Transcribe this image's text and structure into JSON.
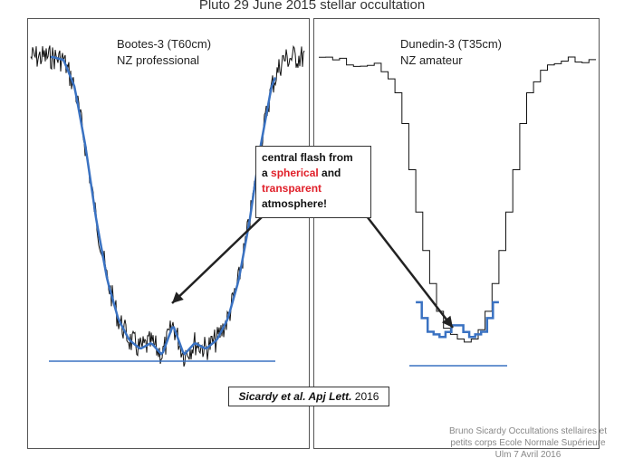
{
  "title": "Pluto 29 June 2015 stellar occultation",
  "chart_data": [
    {
      "type": "line",
      "title": "",
      "labels": [
        "Bootes-3 (T60cm)",
        "NZ professional"
      ],
      "series": [
        {
          "role": "data",
          "color": "#111111",
          "x": [
            0,
            4,
            8,
            12,
            16,
            20,
            24,
            28,
            32,
            36,
            40,
            44,
            48,
            52,
            56,
            60,
            64,
            68,
            72,
            76,
            80,
            84,
            88,
            92,
            96,
            100
          ],
          "y": [
            1.0,
            1.0,
            1.0,
            0.99,
            0.9,
            0.7,
            0.45,
            0.25,
            0.12,
            0.05,
            0.02,
            0.04,
            0.0,
            0.1,
            0.0,
            0.04,
            0.02,
            0.05,
            0.12,
            0.25,
            0.45,
            0.7,
            0.9,
            0.99,
            1.0,
            1.0
          ]
        },
        {
          "role": "fit",
          "color": "#3a72c2",
          "x": [
            0,
            4,
            8,
            12,
            16,
            20,
            24,
            28,
            32,
            36,
            40,
            44,
            48,
            52,
            56,
            60,
            64,
            68,
            72,
            76,
            80,
            84,
            88,
            92,
            96,
            100
          ],
          "y": [
            1.0,
            1.0,
            1.0,
            0.99,
            0.9,
            0.7,
            0.45,
            0.25,
            0.12,
            0.05,
            0.02,
            0.04,
            0.0,
            0.1,
            0.0,
            0.04,
            0.02,
            0.05,
            0.12,
            0.25,
            0.45,
            0.7,
            0.9,
            0.99,
            1.0,
            1.0
          ]
        }
      ]
    },
    {
      "type": "line",
      "title": "",
      "labels": [
        "Dunedin-3 (T35cm)",
        "NZ amateur"
      ],
      "series": [
        {
          "role": "data",
          "color": "#111111",
          "x": [
            0,
            5,
            10,
            15,
            20,
            25,
            30,
            35,
            40,
            45,
            50,
            55,
            60,
            65,
            70,
            75,
            80,
            85,
            90,
            95,
            100
          ],
          "y": [
            1.0,
            0.99,
            1.0,
            0.98,
            0.98,
            0.95,
            0.85,
            0.55,
            0.3,
            0.12,
            0.08,
            0.06,
            0.12,
            0.3,
            0.55,
            0.85,
            0.95,
            0.98,
            1.0,
            0.99,
            1.0
          ]
        },
        {
          "role": "fit",
          "color": "#3a72c2",
          "x": [
            35,
            40,
            45,
            50,
            55,
            60,
            65
          ],
          "y": [
            0.22,
            0.1,
            0.08,
            0.13,
            0.08,
            0.1,
            0.22
          ]
        }
      ]
    }
  ],
  "annotation": {
    "line1": "central flash from",
    "line2_prefix": "a ",
    "line2_red": "spherical",
    "line2_suffix": " and",
    "line3_red": "transparent",
    "line4": "atmosphere!"
  },
  "citation": {
    "authors": "Sicardy et al. Apj Lett.",
    "year": " 2016"
  },
  "footer": {
    "line1": "Bruno Sicardy   Occultations stellaires et",
    "line2": "petits corps   Ecole Normale Supérieure",
    "line3": "Ulm   7 Avril 2016"
  },
  "colors": {
    "fit": "#3a72c2",
    "data": "#111111",
    "highlight": "#e0202a"
  }
}
